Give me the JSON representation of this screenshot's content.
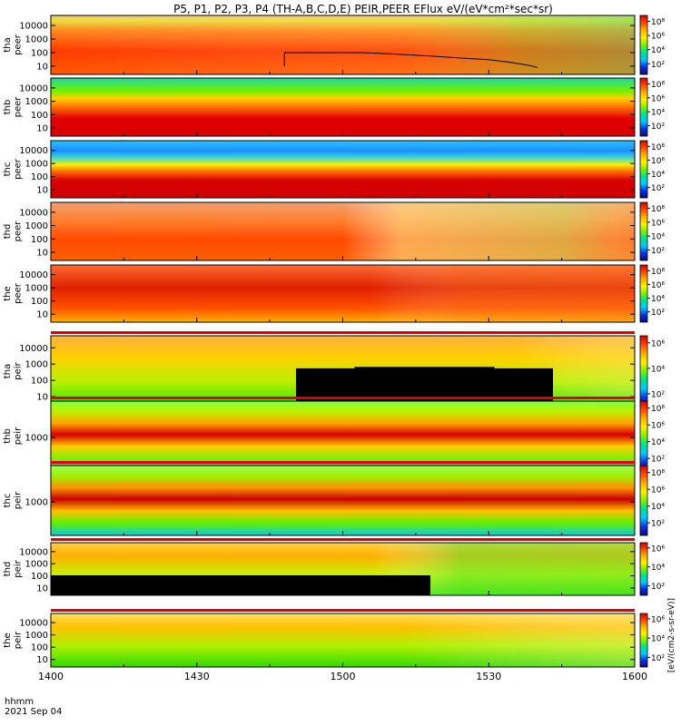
{
  "title": "P5, P1, P2, P3, P4 (TH-A,B,C,D,E) PEIR,PEER EFlux eV/(eV*cm²*sec*sr)",
  "footer": {
    "line1": "hhmm",
    "line2": "2021 Sep 04"
  },
  "chart_data": {
    "type": "heatmap",
    "title": "P5, P1, P2, P3, P4 (TH-A,B,C,D,E) PEIR,PEER EFlux eV/(eV*cm²*sec*sr)",
    "x": {
      "ticks": [
        "1400",
        "1430",
        "1500",
        "1530",
        "1600"
      ],
      "range": [
        "14:00",
        "16:00"
      ]
    },
    "colorbar": {
      "colors": [
        "#0a0a7a",
        "#1030e0",
        "#00c8ff",
        "#00e090",
        "#7cf000",
        "#fff000",
        "#ffb000",
        "#ff4a00",
        "#d20000"
      ],
      "unit_label": "[eV/(cm2-s-sr-eV)]"
    },
    "panels": [
      {
        "name": "tha peer",
        "ylabel": [
          "tha",
          "peer"
        ],
        "yticks": [
          "10",
          "100",
          "1000",
          "10000"
        ],
        "cb_ticks": [
          "10²",
          "10⁴",
          "10⁶",
          "10⁸"
        ],
        "overlay_line": [
          [
            "14:48",
            10
          ],
          [
            "14:48",
            100
          ],
          [
            "15:04",
            100
          ],
          [
            "15:10",
            80
          ],
          [
            "15:18",
            55
          ],
          [
            "15:24",
            40
          ],
          [
            "15:30",
            30
          ],
          [
            "15:34",
            20
          ],
          [
            "15:38",
            12
          ],
          [
            "15:40",
            8
          ]
        ]
      },
      {
        "name": "thb peer",
        "ylabel": [
          "thb",
          "peer"
        ],
        "yticks": [
          "10",
          "100",
          "1000",
          "10000"
        ],
        "cb_ticks": [
          "10²",
          "10⁴",
          "10⁶",
          "10⁸"
        ]
      },
      {
        "name": "thc peer",
        "ylabel": [
          "thc",
          "peer"
        ],
        "yticks": [
          "10",
          "100",
          "1000",
          "10000"
        ],
        "cb_ticks": [
          "10²",
          "10⁴",
          "10⁶",
          "10⁸"
        ]
      },
      {
        "name": "thd peer",
        "ylabel": [
          "thd",
          "peer"
        ],
        "yticks": [
          "10",
          "100",
          "1000",
          "10000"
        ],
        "cb_ticks": [
          "10²",
          "10⁴",
          "10⁶",
          "10⁸"
        ]
      },
      {
        "name": "the peer",
        "ylabel": [
          "the",
          "peer"
        ],
        "yticks": [
          "10",
          "100",
          "1000",
          "10000"
        ],
        "cb_ticks": [
          "10²",
          "10⁴",
          "10⁶",
          "10⁸"
        ]
      },
      {
        "name": "tha peir",
        "ylabel": [
          "tha",
          "peir"
        ],
        "yticks": [
          "10",
          "100",
          "1000",
          "10000"
        ],
        "cb_ticks": [
          "10²",
          "10⁴",
          "10⁶"
        ]
      },
      {
        "name": "thb peir",
        "ylabel": [
          "thb",
          "peir"
        ],
        "yticks": [
          "1000"
        ],
        "cb_ticks": [
          "10²",
          "10⁴",
          "10⁶",
          "10⁸"
        ]
      },
      {
        "name": "thc peir",
        "ylabel": [
          "thc",
          "peir"
        ],
        "yticks": [
          "1000"
        ],
        "cb_ticks": [
          "10²",
          "10⁴",
          "10⁶",
          "10⁸"
        ]
      },
      {
        "name": "thd peir",
        "ylabel": [
          "thd",
          "peir"
        ],
        "yticks": [
          "10",
          "100",
          "1000",
          "10000"
        ],
        "cb_ticks": [
          "10²",
          "10⁴",
          "10⁶"
        ]
      },
      {
        "name": "the peir",
        "ylabel": [
          "the",
          "peir"
        ],
        "yticks": [
          "10",
          "100",
          "1000",
          "10000"
        ],
        "cb_ticks": [
          "10²",
          "10⁴",
          "10⁶"
        ]
      }
    ]
  }
}
